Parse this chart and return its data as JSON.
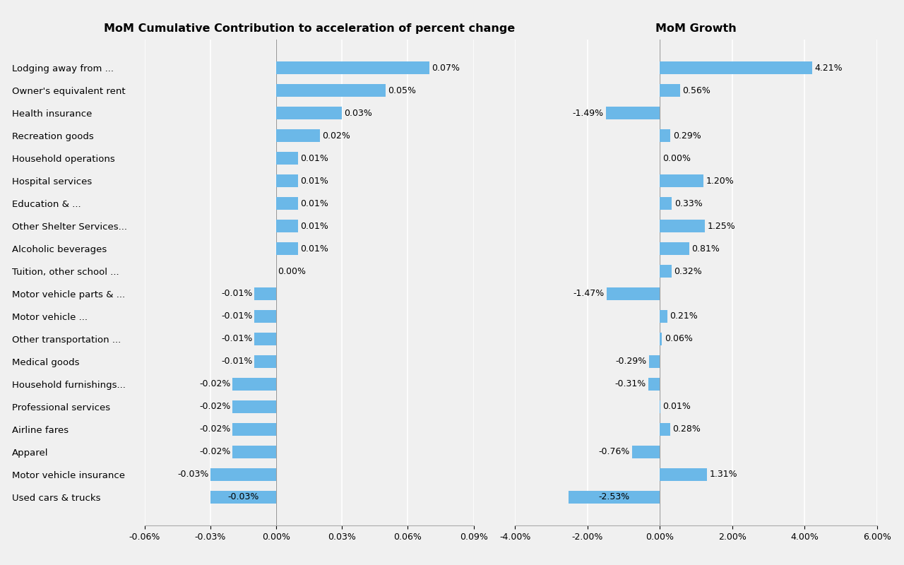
{
  "categories": [
    "Lodging away from ...",
    "Owner's equivalent rent",
    "Health insurance",
    "Recreation goods",
    "Household operations",
    "Hospital services",
    "Education & ...",
    "Other Shelter Services...",
    "Alcoholic beverages",
    "Tuition, other school ...",
    "Motor vehicle parts & ...",
    "Motor vehicle ...",
    "Other transportation ...",
    "Medical goods",
    "Household furnishings...",
    "Professional services",
    "Airline fares",
    "Apparel",
    "Motor vehicle insurance",
    "Used cars & trucks"
  ],
  "contrib_values": [
    0.0007,
    0.0005,
    0.0003,
    0.0002,
    0.0001,
    0.0001,
    0.0001,
    0.0001,
    0.0001,
    0.0,
    -0.0001,
    -0.0001,
    -0.0001,
    -0.0001,
    -0.0002,
    -0.0002,
    -0.0002,
    -0.0002,
    -0.0003,
    -0.0003
  ],
  "contrib_labels": [
    "0.07%",
    "0.05%",
    "0.03%",
    "0.02%",
    "0.01%",
    "0.01%",
    "0.01%",
    "0.01%",
    "0.01%",
    "0.00%",
    "-0.01%",
    "-0.01%",
    "-0.01%",
    "-0.01%",
    "-0.02%",
    "-0.02%",
    "-0.02%",
    "-0.02%",
    "-0.03%",
    "-0.03%"
  ],
  "growth_values": [
    4.21,
    0.56,
    -1.49,
    0.29,
    0.0,
    1.2,
    0.33,
    1.25,
    0.81,
    0.32,
    -1.47,
    0.21,
    0.06,
    -0.29,
    -0.31,
    0.01,
    0.28,
    -0.76,
    1.31,
    -2.53
  ],
  "growth_labels": [
    "4.21%",
    "0.56%",
    "-1.49%",
    "0.29%",
    "0.00%",
    "1.20%",
    "0.33%",
    "1.25%",
    "0.81%",
    "0.32%",
    "-1.47%",
    "0.21%",
    "0.06%",
    "-0.29%",
    "-0.31%",
    "0.01%",
    "0.28%",
    "-0.76%",
    "1.31%",
    "-2.53%"
  ],
  "left_title": "MoM Cumulative Contribution to acceleration of percent change",
  "right_title": "MoM Growth",
  "bar_color": "#6BB8E8",
  "left_xlim": [
    -0.0006,
    0.0009
  ],
  "right_xlim": [
    -4.0,
    6.0
  ],
  "left_xticks": [
    -0.0006,
    -0.0003,
    0.0,
    0.0003,
    0.0006,
    0.0009
  ],
  "left_xticklabels": [
    "-0.06%",
    "-0.03%",
    "0.00%",
    "0.03%",
    "0.06%",
    "0.09%"
  ],
  "right_xticks": [
    -4.0,
    -2.0,
    0.0,
    2.0,
    4.0,
    6.0
  ],
  "right_xticklabels": [
    "-4.00%",
    "-2.00%",
    "0.00%",
    "2.00%",
    "4.00%",
    "6.00%"
  ],
  "background_color": "#f0f0f0",
  "title_fontsize": 11.5,
  "label_fontsize": 9.5,
  "tick_fontsize": 9,
  "bar_height": 0.55
}
